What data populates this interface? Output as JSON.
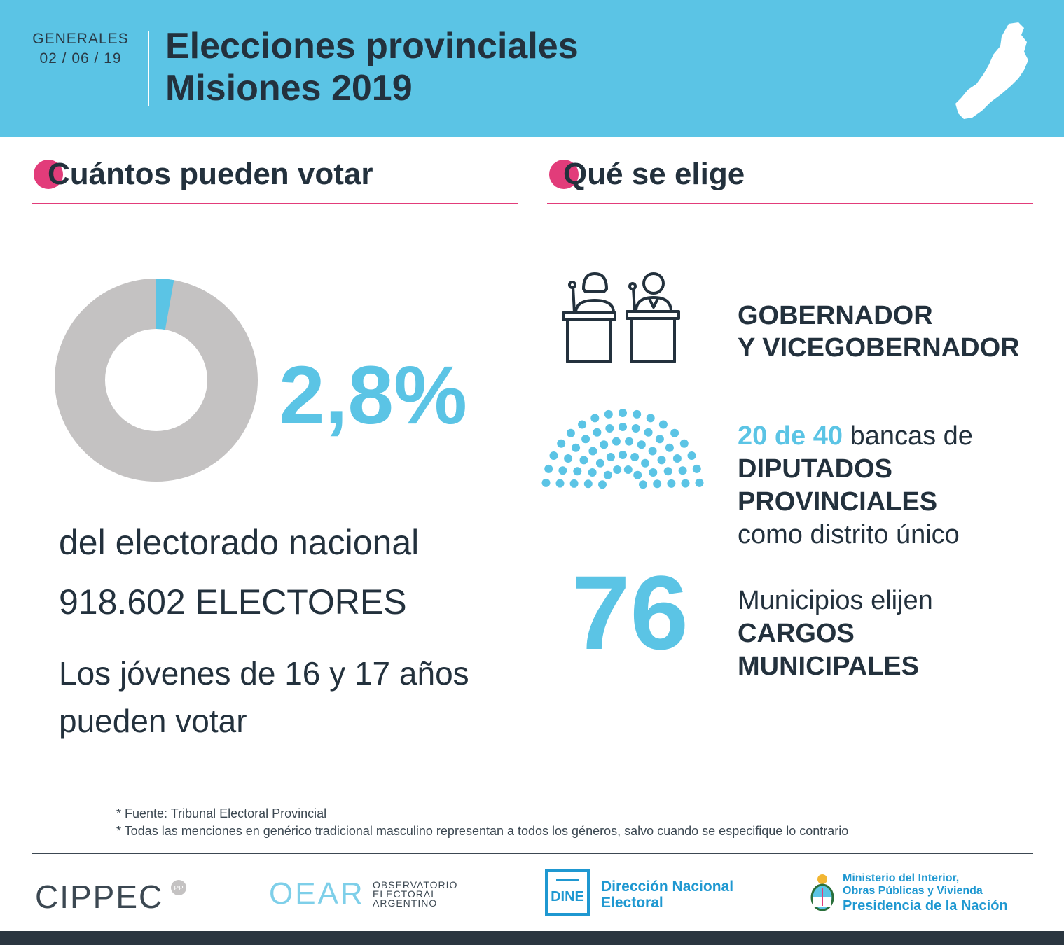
{
  "header": {
    "date_label": "GENERALES",
    "date_value": "02 / 06 / 19",
    "title_line1": "Elecciones provinciales",
    "title_line2": "Misiones 2019"
  },
  "left": {
    "section_title": "Cuántos pueden votar",
    "percent_text": "2,8%",
    "percent_value": 2.8,
    "electorado_text": "del electorado nacional",
    "electores_number": "918.602",
    "electores_label": "ELECTORES",
    "jovenes_line1": "Los jóvenes de 16 y 17 años",
    "jovenes_line2": "pueden votar"
  },
  "right": {
    "section_title": "Qué se elige",
    "gob_line1": "GOBERNADOR",
    "gob_line2": "Y VICEGOBERNADOR",
    "bancas_highlight": "20 de 40",
    "bancas_text": " bancas de",
    "diputados_line1": "DIPUTADOS",
    "diputados_line2": "PROVINCIALES",
    "diputados_line3": "como distrito único",
    "municipios_number": "76",
    "municipios_line1": "Municipios elijen",
    "municipios_line2": "CARGOS",
    "municipios_line3": "MUNICIPALES"
  },
  "footnotes": {
    "source": "* Fuente: Tribunal Electoral Provincial",
    "gender": "* Todas las menciones en genérico tradicional masculino representan a todos los géneros, salvo cuando se especifique lo contrario"
  },
  "logos": {
    "cippec": "CIPPEC",
    "oear": "OEAR",
    "oear_sub1": "OBSERVATORIO",
    "oear_sub2": "ELECTORAL",
    "oear_sub3": "ARGENTINO",
    "dine": "DINE",
    "dine_line1": "Dirección Nacional",
    "dine_line2": "Electoral",
    "min_line1": "Ministerio del Interior,",
    "min_line2": "Obras Públicas y Vivienda",
    "min_line3": "Presidencia de la Nación"
  },
  "colors": {
    "accent_blue": "#5bc4e5",
    "accent_pink": "#e23c7a",
    "dark": "#23313d",
    "donut_gray": "#c4c2c2"
  }
}
